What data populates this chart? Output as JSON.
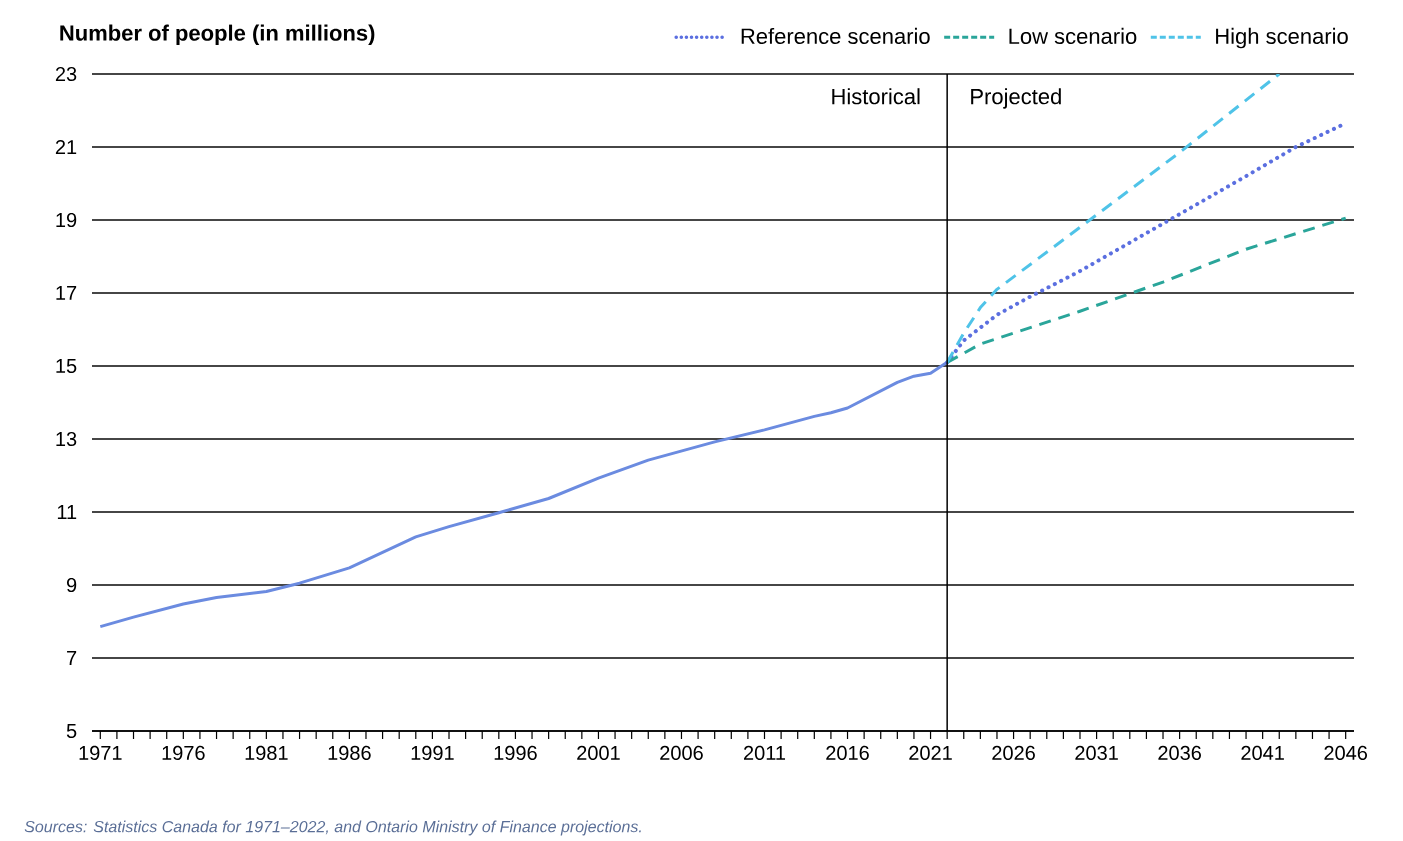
{
  "chart_data": {
    "type": "line",
    "ylabel": "Number of people (in millions)",
    "x": [
      1971,
      1973,
      1976,
      1978,
      1981,
      1983,
      1986,
      1990,
      1992,
      1995,
      1998,
      2001,
      2004,
      2008,
      2011,
      2014,
      2015,
      2016,
      2019,
      2020,
      2021,
      2022
    ],
    "series": [
      {
        "color": "#6b8be0",
        "line_style": "solid",
        "values": [
          7.86,
          8.12,
          8.48,
          8.66,
          8.82,
          9.05,
          9.47,
          10.32,
          10.6,
          10.98,
          11.37,
          11.93,
          12.42,
          12.92,
          13.25,
          13.62,
          13.72,
          13.85,
          14.55,
          14.72,
          14.8,
          15.1
        ]
      },
      {
        "name": "Reference scenario",
        "color": "#5b6fe0",
        "line_style": "dotted",
        "x": [
          2022,
          2023,
          2025,
          2027,
          2030,
          2035,
          2040,
          2043,
          2046
        ],
        "values": [
          15.1,
          15.7,
          16.4,
          16.9,
          17.6,
          18.9,
          20.2,
          21.0,
          21.65
        ]
      },
      {
        "name": "Low scenario",
        "color": "#2aa59a",
        "line_style": "dashed",
        "x": [
          2022,
          2024,
          2026,
          2030,
          2035,
          2040,
          2046
        ],
        "values": [
          15.1,
          15.6,
          15.9,
          16.5,
          17.3,
          18.2,
          19.05
        ]
      },
      {
        "name": "High scenario",
        "color": "#4fc3e8",
        "line_style": "dashed",
        "x": [
          2022,
          2023,
          2024,
          2025,
          2030,
          2036,
          2042
        ],
        "values": [
          15.1,
          15.9,
          16.6,
          17.1,
          18.8,
          20.85,
          23.0
        ]
      }
    ],
    "xlim": [
      1970.5,
      2046.5
    ],
    "xticks": [
      1971,
      1976,
      1981,
      1986,
      1991,
      1996,
      2001,
      2006,
      2011,
      2016,
      2021,
      2026,
      2031,
      2036,
      2041,
      2046
    ],
    "ylim": [
      5,
      23
    ],
    "yticks": [
      5,
      7,
      9,
      11,
      13,
      15,
      17,
      19,
      21,
      23
    ],
    "grid": "y",
    "legend": "top right",
    "marker": "none",
    "ref_lines": [
      {
        "axis": "x",
        "value": 2022,
        "color": "#000000",
        "line_style": "solid"
      }
    ],
    "annotations": [
      "Historical",
      "Projected",
      "Sources: Statistics Canada for 1971–2022, and Ontario Ministry of Finance projections."
    ]
  }
}
